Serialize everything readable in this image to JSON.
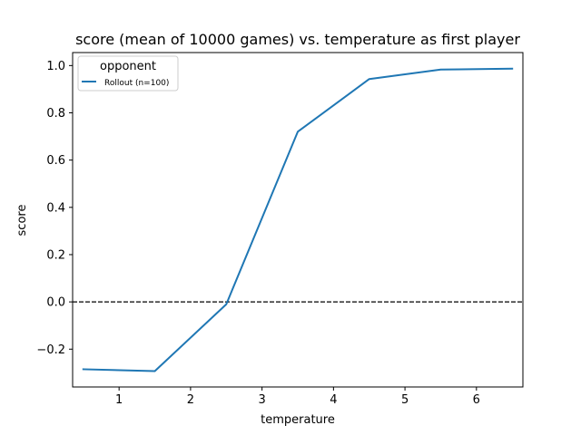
{
  "chart_data": {
    "type": "line",
    "title": "score (mean of 10000 games) vs. temperature as first player",
    "xlabel": "temperature",
    "ylabel": "score",
    "xlim": [
      0.35,
      6.65
    ],
    "ylim": [
      -0.36,
      1.055
    ],
    "xticks": [
      1,
      2,
      3,
      4,
      5,
      6
    ],
    "yticks": [
      -0.2,
      0.0,
      0.2,
      0.4,
      0.6,
      0.8,
      1.0
    ],
    "ytick_labels": [
      "−0.2",
      "0.0",
      "0.2",
      "0.4",
      "0.6",
      "0.8",
      "1.0"
    ],
    "xtick_labels": [
      "1",
      "2",
      "3",
      "4",
      "5",
      "6"
    ],
    "grid": false,
    "legend": {
      "title": "opponent",
      "position": "top-left"
    },
    "reference_line": {
      "y": 0.0,
      "style": "dashed",
      "color": "#000000"
    },
    "series": [
      {
        "name": "Rollout (n=100)",
        "color": "#1f77b4",
        "x": [
          0.5,
          1.5,
          2.5,
          3.5,
          4.5,
          5.5,
          6.5
        ],
        "y": [
          -0.285,
          -0.293,
          -0.01,
          0.72,
          0.943,
          0.983,
          0.987
        ]
      }
    ]
  }
}
